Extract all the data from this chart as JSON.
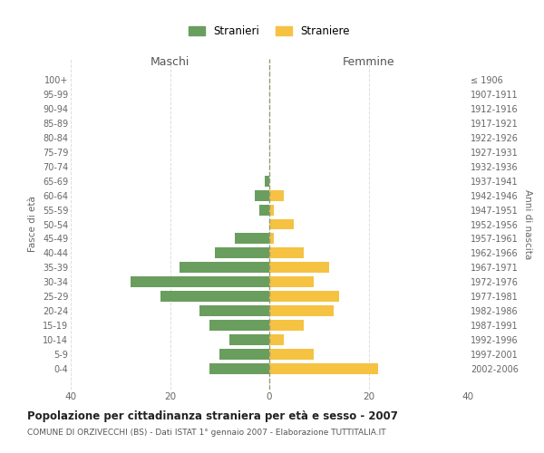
{
  "age_groups": [
    "100+",
    "95-99",
    "90-94",
    "85-89",
    "80-84",
    "75-79",
    "70-74",
    "65-69",
    "60-64",
    "55-59",
    "50-54",
    "45-49",
    "40-44",
    "35-39",
    "30-34",
    "25-29",
    "20-24",
    "15-19",
    "10-14",
    "5-9",
    "0-4"
  ],
  "birth_years": [
    "≤ 1906",
    "1907-1911",
    "1912-1916",
    "1917-1921",
    "1922-1926",
    "1927-1931",
    "1932-1936",
    "1937-1941",
    "1942-1946",
    "1947-1951",
    "1952-1956",
    "1957-1961",
    "1962-1966",
    "1967-1971",
    "1972-1976",
    "1977-1981",
    "1982-1986",
    "1987-1991",
    "1992-1996",
    "1997-2001",
    "2002-2006"
  ],
  "males": [
    0,
    0,
    0,
    0,
    0,
    0,
    0,
    1,
    3,
    2,
    0,
    7,
    11,
    18,
    28,
    22,
    14,
    12,
    8,
    10,
    12
  ],
  "females": [
    0,
    0,
    0,
    0,
    0,
    0,
    0,
    0,
    3,
    1,
    5,
    1,
    7,
    12,
    9,
    14,
    13,
    7,
    3,
    9,
    22
  ],
  "male_color": "#6a9e5e",
  "female_color": "#f5c242",
  "male_label": "Stranieri",
  "female_label": "Straniere",
  "title": "Popolazione per cittadinanza straniera per età e sesso - 2007",
  "subtitle": "COMUNE DI ORZIVECCHI (BS) - Dati ISTAT 1° gennaio 2007 - Elaborazione TUTTITALIA.IT",
  "xlabel_left": "Maschi",
  "xlabel_right": "Femmine",
  "ylabel_left": "Fasce di età",
  "ylabel_right": "Anni di nascita",
  "xlim": 40,
  "background_color": "#ffffff",
  "grid_color": "#dddddd",
  "center_line_color": "#999977"
}
